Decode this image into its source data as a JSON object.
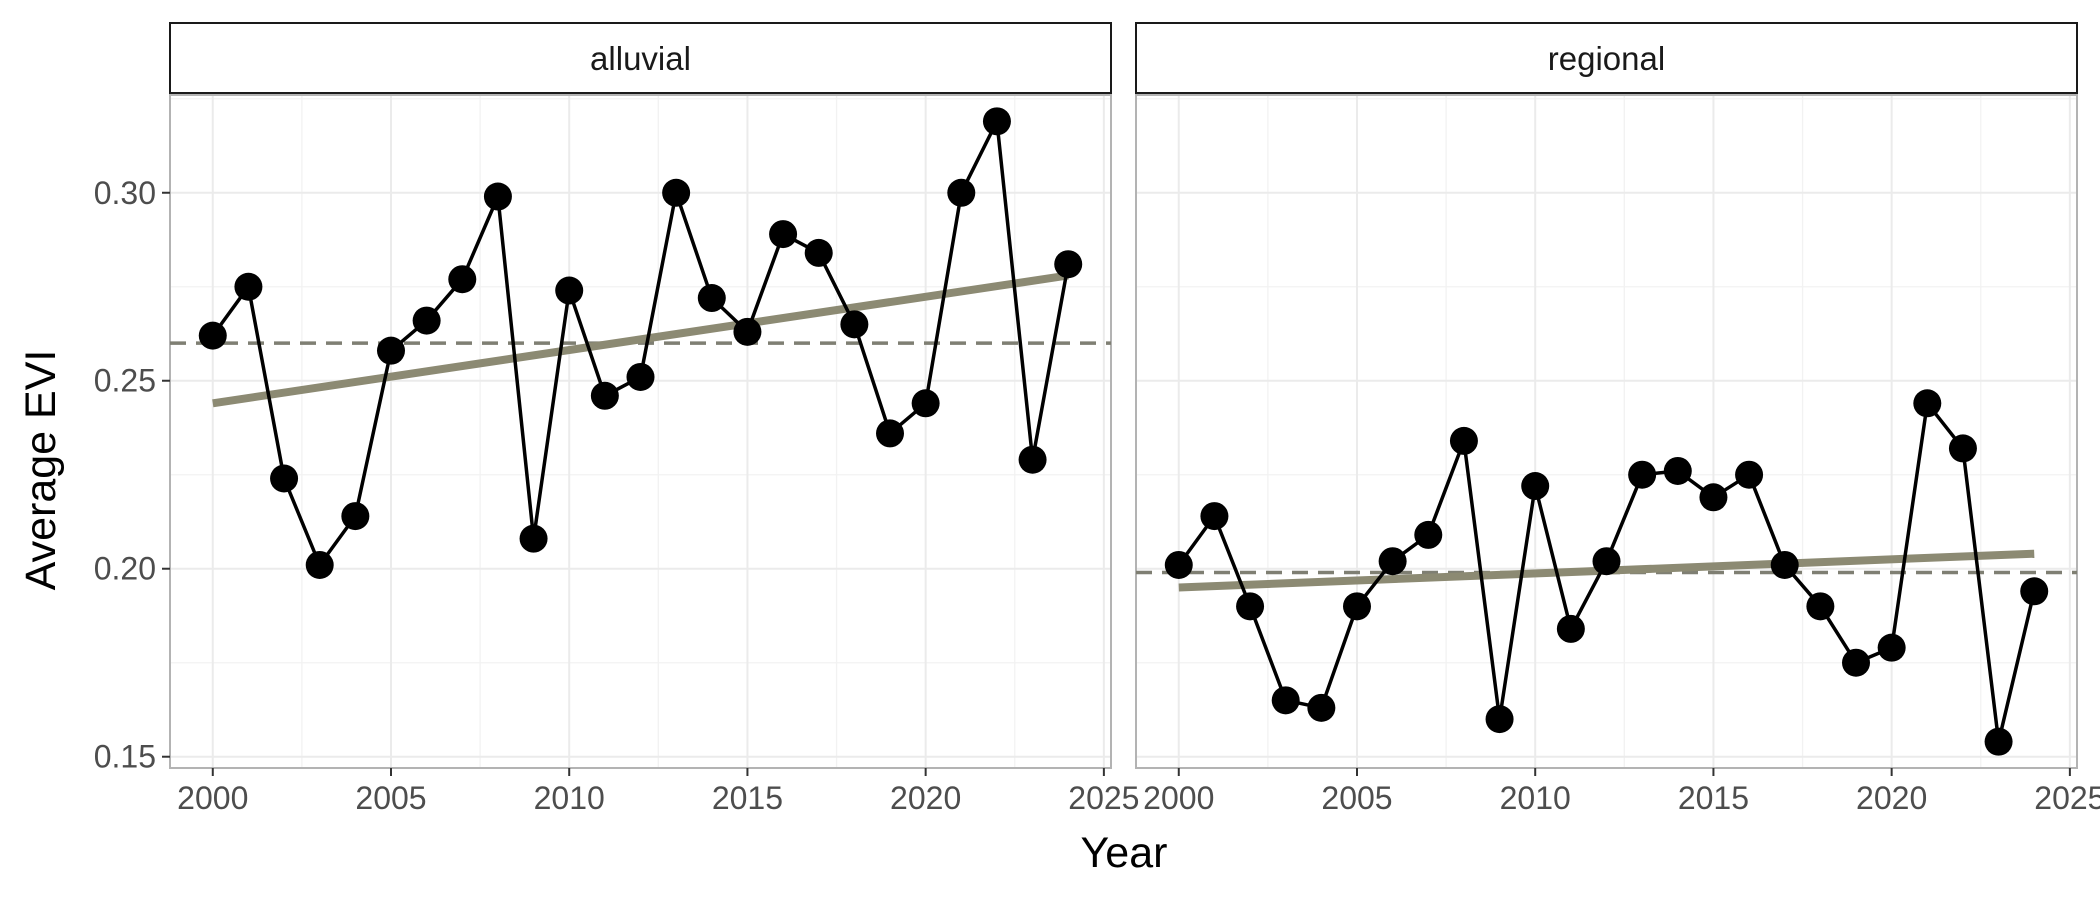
{
  "chart_data": {
    "type": "line",
    "xlabel": "Year",
    "ylabel": "Average EVI",
    "xlim": [
      1998.8,
      2025.2
    ],
    "ylim": [
      0.147,
      0.326
    ],
    "x_ticks": [
      2000,
      2005,
      2010,
      2015,
      2020,
      2025
    ],
    "x_tick_labels": [
      "2000",
      "2005",
      "2010",
      "2015",
      "2020",
      "2025"
    ],
    "y_ticks": [
      0.15,
      0.2,
      0.25,
      0.3
    ],
    "y_tick_labels": [
      "0.15",
      "0.20",
      "0.25",
      "0.30"
    ],
    "grid": true,
    "colors": {
      "points": "#000000",
      "line": "#000000",
      "trend": "#8c8a73",
      "mean_line": "#7f7f73",
      "grid": "#ebebeb",
      "panel_border": "#b3b3b3"
    },
    "facets": [
      {
        "label": "alluvial",
        "x": [
          2000,
          2001,
          2002,
          2003,
          2004,
          2005,
          2006,
          2007,
          2008,
          2009,
          2010,
          2011,
          2012,
          2013,
          2014,
          2015,
          2016,
          2017,
          2018,
          2019,
          2020,
          2021,
          2022,
          2023,
          2024
        ],
        "y": [
          0.262,
          0.275,
          0.224,
          0.201,
          0.214,
          0.258,
          0.266,
          0.277,
          0.299,
          0.208,
          0.274,
          0.246,
          0.251,
          0.3,
          0.272,
          0.263,
          0.289,
          0.284,
          0.265,
          0.236,
          0.244,
          0.3,
          0.319,
          0.229,
          0.281
        ],
        "mean": 0.26,
        "trend": {
          "x0": 2000,
          "y0": 0.244,
          "x1": 2024,
          "y1": 0.278
        }
      },
      {
        "label": "regional",
        "x": [
          2000,
          2001,
          2002,
          2003,
          2004,
          2005,
          2006,
          2007,
          2008,
          2009,
          2010,
          2011,
          2012,
          2013,
          2014,
          2015,
          2016,
          2017,
          2018,
          2019,
          2020,
          2021,
          2022,
          2023,
          2024
        ],
        "y": [
          0.201,
          0.214,
          0.19,
          0.165,
          0.163,
          0.19,
          0.202,
          0.209,
          0.234,
          0.16,
          0.222,
          0.184,
          0.202,
          0.225,
          0.226,
          0.219,
          0.225,
          0.201,
          0.19,
          0.175,
          0.179,
          0.244,
          0.232,
          0.154,
          0.194
        ],
        "mean": 0.199,
        "trend": {
          "x0": 2000,
          "y0": 0.195,
          "x1": 2024,
          "y1": 0.204
        }
      }
    ]
  }
}
